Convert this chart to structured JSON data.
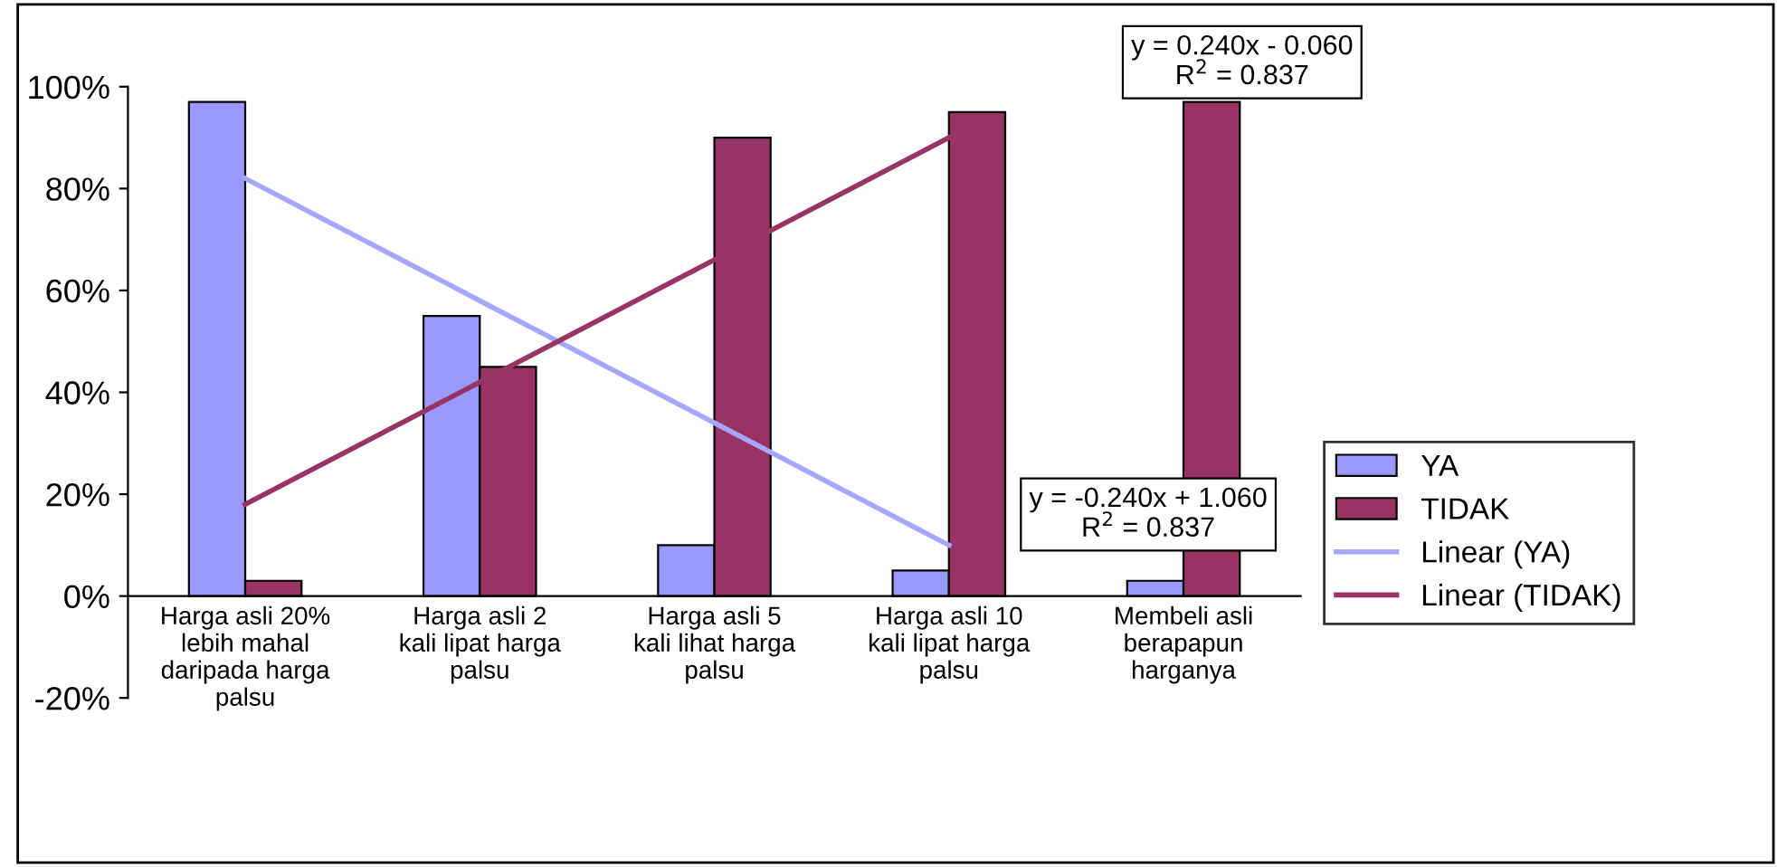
{
  "chart_data": {
    "type": "bar",
    "categories": [
      "Harga asli 20%\nlebih mahal\ndaripada harga\npalsu",
      "Harga asli 2\nkali lipat harga\npalsu",
      "Harga asli 5\nkali lihat harga\npalsu",
      "Harga asli 10\nkali lipat harga\npalsu",
      "Membeli asli\nberapapun\nharganya"
    ],
    "series": [
      {
        "name": "YA",
        "color": "#9999ff",
        "values": [
          97,
          55,
          10,
          5,
          3
        ]
      },
      {
        "name": "TIDAK",
        "color": "#993366",
        "values": [
          3,
          45,
          90,
          95,
          97
        ]
      },
      {
        "name": "Linear (YA)",
        "type": "line",
        "color": "#a6a6ff",
        "values": [
          82,
          58,
          34,
          10,
          null
        ]
      },
      {
        "name": "Linear (TIDAK)",
        "type": "line",
        "color": "#993366",
        "values": [
          18,
          42,
          66,
          90,
          null
        ]
      }
    ],
    "ylim": [
      -20,
      100
    ],
    "yticks": [
      {
        "value": -20,
        "label": "-20%"
      },
      {
        "value": 0,
        "label": "0%"
      },
      {
        "value": 20,
        "label": "20%"
      },
      {
        "value": 40,
        "label": "40%"
      },
      {
        "value": 60,
        "label": "60%"
      },
      {
        "value": 80,
        "label": "80%"
      },
      {
        "value": 100,
        "label": "100%"
      }
    ],
    "annotations": [
      "y = 0.240x - 0.060\nR$^{2}$ = 0.837",
      "y = -0.240x + 1.060\nR$^{2}$ = 0.837"
    ],
    "legend": "right",
    "grid": false
  }
}
